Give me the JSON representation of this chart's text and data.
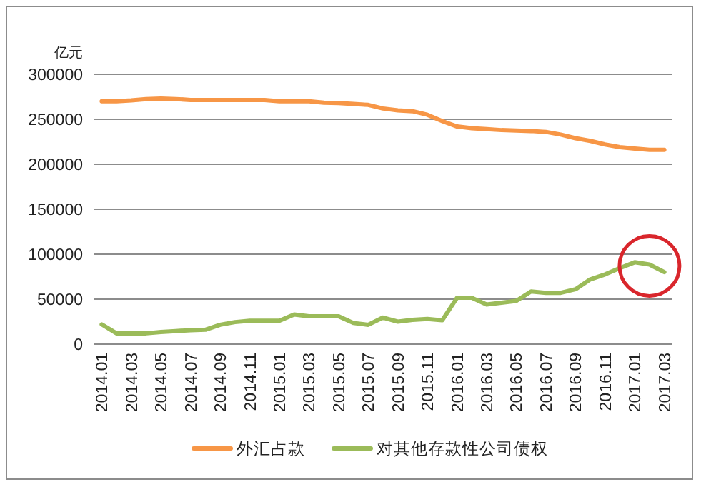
{
  "chart_data": {
    "type": "line",
    "ylabel": "亿元",
    "categories": [
      "2014.01",
      null,
      "2014.03",
      null,
      "2014.05",
      null,
      "2014.07",
      null,
      "2014.09",
      null,
      "2014.11",
      null,
      "2015.01",
      null,
      "2015.03",
      null,
      "2015.05",
      null,
      "2015.07",
      null,
      "2015.09",
      null,
      "2015.11",
      null,
      "2016.01",
      null,
      "2016.03",
      null,
      "2016.05",
      null,
      "2016.07",
      null,
      "2016.09",
      null,
      "2016.11",
      null,
      "2017.01",
      null,
      "2017.03"
    ],
    "series": [
      {
        "name": "外汇占款",
        "color": "#f79646",
        "values": [
          270000,
          270000,
          271000,
          272500,
          273000,
          272500,
          271500,
          271500,
          271500,
          271500,
          271500,
          271500,
          270000,
          270000,
          270000,
          268500,
          268000,
          267000,
          266000,
          262000,
          260000,
          259000,
          255000,
          248000,
          242000,
          240000,
          239000,
          238000,
          237500,
          237000,
          236000,
          233000,
          229000,
          226000,
          222000,
          219000,
          217500,
          216000,
          216000
        ]
      },
      {
        "name": "对其他存款性公司债权",
        "color": "#9bbb59",
        "values": [
          22000,
          12000,
          12000,
          12000,
          13500,
          14500,
          15500,
          16000,
          21500,
          24500,
          26000,
          26000,
          26000,
          33000,
          31000,
          31000,
          31000,
          23500,
          21500,
          29500,
          25000,
          27000,
          28000,
          26500,
          51500,
          51500,
          44000,
          46000,
          48000,
          58500,
          57000,
          57000,
          61000,
          72000,
          77500,
          84500,
          91000,
          88500,
          80000
        ]
      }
    ],
    "ylim": [
      0,
      300000
    ],
    "yticks": [
      0,
      50000,
      100000,
      150000,
      200000,
      250000,
      300000
    ],
    "grid": "y",
    "legend": "bottom"
  }
}
